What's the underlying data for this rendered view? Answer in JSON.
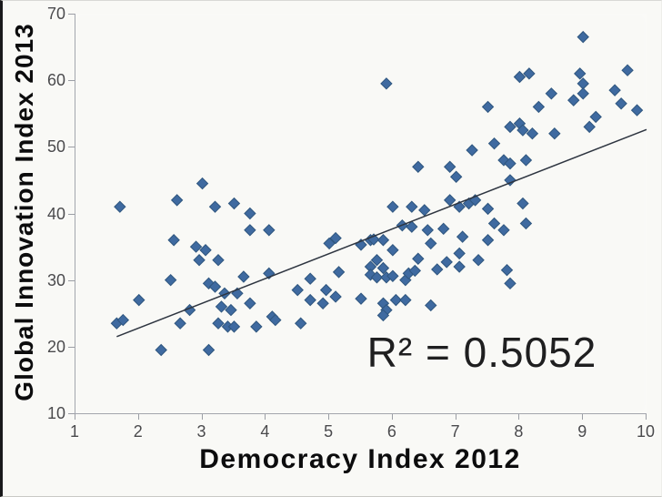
{
  "chart_data": {
    "type": "scatter",
    "title": "",
    "xlabel": "Democracy Index 2012",
    "ylabel": "Global Innovation Index 2013",
    "xlim": [
      1,
      10
    ],
    "ylim": [
      10,
      70
    ],
    "x_ticks": [
      1,
      2,
      3,
      4,
      5,
      6,
      7,
      8,
      9,
      10
    ],
    "y_ticks": [
      10,
      20,
      30,
      40,
      50,
      60,
      70
    ],
    "grid": false,
    "legend": "none",
    "annotation": "R² = 0.5052",
    "r_squared": 0.5052,
    "marker_color": "#3f6aa0",
    "marker_edge_color": "#2f567e",
    "trend_color": "#2e3540",
    "plot_bg_top": "#e0e3eb",
    "plot_bg_bottom": "#d2d8e2",
    "trendline": {
      "x1": 1.65,
      "y1": 21.5,
      "x2": 10.0,
      "y2": 52.6
    },
    "points": [
      [
        1.65,
        23.5
      ],
      [
        1.7,
        41
      ],
      [
        1.75,
        24
      ],
      [
        2.0,
        27
      ],
      [
        2.35,
        19.5
      ],
      [
        2.5,
        30
      ],
      [
        2.55,
        36
      ],
      [
        2.6,
        42
      ],
      [
        2.65,
        23.5
      ],
      [
        2.8,
        25.5
      ],
      [
        2.9,
        35
      ],
      [
        2.95,
        33
      ],
      [
        3.0,
        44.5
      ],
      [
        3.05,
        34.5
      ],
      [
        3.1,
        29.5
      ],
      [
        3.1,
        19.5
      ],
      [
        3.2,
        41
      ],
      [
        3.2,
        29
      ],
      [
        3.25,
        33
      ],
      [
        3.25,
        23.5
      ],
      [
        3.3,
        26
      ],
      [
        3.35,
        28
      ],
      [
        3.4,
        23
      ],
      [
        3.45,
        25.5
      ],
      [
        3.5,
        41.5
      ],
      [
        3.5,
        23
      ],
      [
        3.55,
        28
      ],
      [
        3.65,
        30.5
      ],
      [
        3.75,
        40
      ],
      [
        3.75,
        37.5
      ],
      [
        3.75,
        26.5
      ],
      [
        3.85,
        23
      ],
      [
        4.05,
        37.5
      ],
      [
        4.05,
        31
      ],
      [
        4.1,
        24.5
      ],
      [
        4.15,
        24
      ],
      [
        4.5,
        28.5
      ],
      [
        4.55,
        23.5
      ],
      [
        4.7,
        30.2
      ],
      [
        4.7,
        27
      ],
      [
        4.9,
        26.5
      ],
      [
        4.95,
        28.5
      ],
      [
        5.0,
        35.5
      ],
      [
        5.1,
        36.3
      ],
      [
        5.1,
        27.5
      ],
      [
        5.15,
        31.2
      ],
      [
        5.5,
        35.3
      ],
      [
        5.5,
        27.2
      ],
      [
        5.65,
        36
      ],
      [
        5.7,
        36.1
      ],
      [
        5.85,
        36
      ],
      [
        5.9,
        59.5
      ],
      [
        5.65,
        32
      ],
      [
        5.85,
        31.8
      ],
      [
        5.65,
        30.8
      ],
      [
        5.75,
        30.4
      ],
      [
        5.9,
        30.4
      ],
      [
        6.0,
        30.6
      ],
      [
        5.75,
        33
      ],
      [
        6.0,
        34.5
      ],
      [
        6.0,
        41
      ],
      [
        6.15,
        38.2
      ],
      [
        6.3,
        38
      ],
      [
        6.3,
        41
      ],
      [
        6.5,
        40.5
      ],
      [
        6.55,
        37.5
      ],
      [
        6.2,
        30
      ],
      [
        6.25,
        31
      ],
      [
        6.35,
        31.4
      ],
      [
        6.4,
        33.2
      ],
      [
        5.85,
        26.5
      ],
      [
        5.9,
        25.5
      ],
      [
        5.85,
        24.7
      ],
      [
        6.05,
        27
      ],
      [
        6.2,
        27
      ],
      [
        6.6,
        26.2
      ],
      [
        6.6,
        35.5
      ],
      [
        6.8,
        37.7
      ],
      [
        6.9,
        42
      ],
      [
        6.85,
        32.7
      ],
      [
        6.7,
        31.6
      ],
      [
        6.4,
        47
      ],
      [
        6.9,
        47
      ],
      [
        7.0,
        45.5
      ],
      [
        7.05,
        34
      ],
      [
        7.05,
        32
      ],
      [
        7.05,
        41
      ],
      [
        7.2,
        41.5
      ],
      [
        7.3,
        42
      ],
      [
        7.35,
        33
      ],
      [
        7.1,
        36.5
      ],
      [
        7.25,
        49.5
      ],
      [
        7.5,
        56
      ],
      [
        7.5,
        40.7
      ],
      [
        7.5,
        36
      ],
      [
        7.6,
        50.5
      ],
      [
        7.6,
        38.5
      ],
      [
        7.75,
        37.5
      ],
      [
        7.75,
        48
      ],
      [
        7.85,
        47.5
      ],
      [
        7.8,
        31.5
      ],
      [
        7.85,
        29.5
      ],
      [
        7.85,
        45
      ],
      [
        7.85,
        53
      ],
      [
        8.0,
        53.5
      ],
      [
        8.05,
        52.5
      ],
      [
        8.0,
        60.5
      ],
      [
        8.15,
        61
      ],
      [
        8.05,
        41.5
      ],
      [
        8.1,
        48
      ],
      [
        8.1,
        38.5
      ],
      [
        8.2,
        52
      ],
      [
        8.3,
        56
      ],
      [
        8.55,
        52
      ],
      [
        8.5,
        58
      ],
      [
        8.85,
        57
      ],
      [
        8.95,
        61
      ],
      [
        9.0,
        66.5
      ],
      [
        9.0,
        59.5
      ],
      [
        9.0,
        58
      ],
      [
        9.1,
        53
      ],
      [
        9.2,
        54.5
      ],
      [
        9.5,
        58.5
      ],
      [
        9.6,
        56.5
      ],
      [
        9.7,
        61.5
      ],
      [
        9.85,
        55.5
      ]
    ]
  }
}
